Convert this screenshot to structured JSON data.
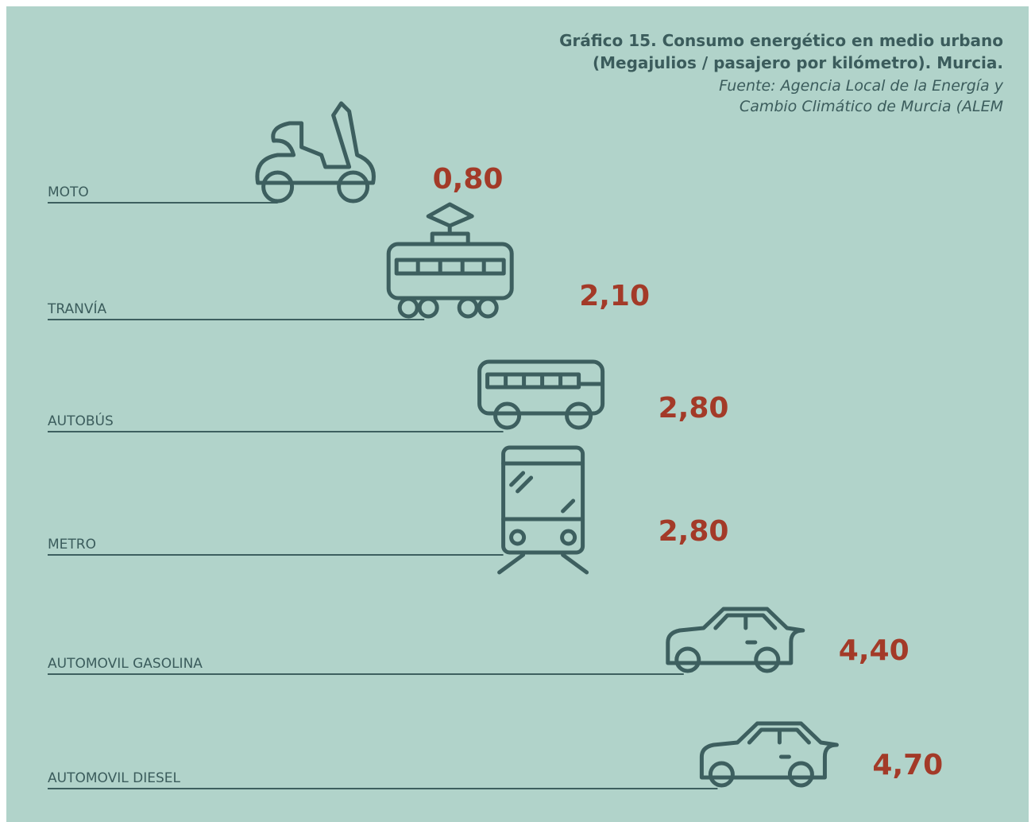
{
  "chart_data": {
    "type": "bar",
    "title": "Gráfico 15. Consumo energético en medio urbano",
    "subtitle": "(Megajulios / pasajero por kilómetro). Murcia.",
    "source": [
      "Fuente: Agencia Local de la Energía y",
      "Cambio Climático de Murcia (ALEM"
    ],
    "categories": [
      "MOTO",
      "TRANVÍA",
      "AUTOBÚS",
      "METRO",
      "AUTOMOVIL GASOLINA",
      "AUTOMOVIL DIESEL"
    ],
    "values": [
      0.8,
      2.1,
      2.8,
      2.8,
      4.4,
      4.7
    ],
    "value_labels": [
      "0,80",
      "2,10",
      "2,80",
      "2,80",
      "4,40",
      "4,70"
    ],
    "color": "#3d5f5f"
  }
}
